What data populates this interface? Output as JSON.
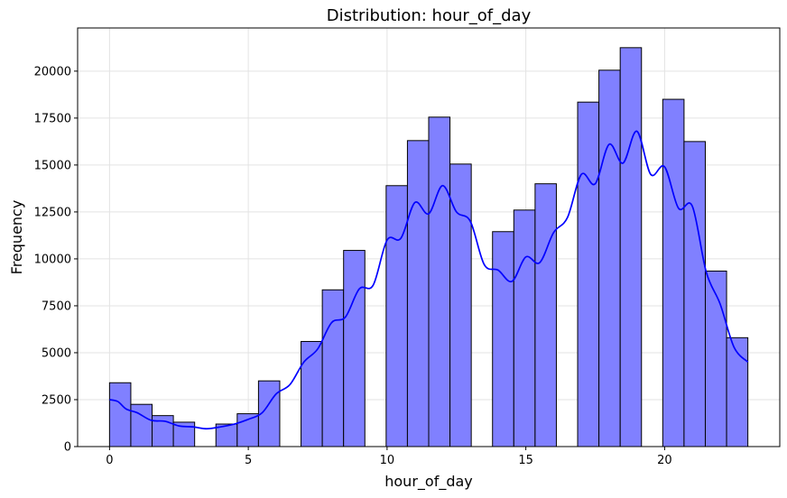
{
  "chart_data": {
    "type": "bar",
    "title": "Distribution: hour_of_day",
    "xlabel": "hour_of_day",
    "ylabel": "Frequency",
    "xlim": [
      -1.15,
      24.15
    ],
    "ylim": [
      0,
      22300
    ],
    "xticks": [
      0,
      5,
      10,
      15,
      20
    ],
    "yticks": [
      0,
      2500,
      5000,
      7500,
      10000,
      12500,
      15000,
      17500,
      20000
    ],
    "grid": true,
    "bin_width": 0.7667,
    "bins": [
      {
        "x0": 0.0,
        "x1": 0.7667,
        "count": 3400
      },
      {
        "x0": 0.7667,
        "x1": 1.5333,
        "count": 2250
      },
      {
        "x0": 1.5333,
        "x1": 2.3,
        "count": 1650
      },
      {
        "x0": 2.3,
        "x1": 3.0667,
        "count": 1300
      },
      {
        "x0": 3.0667,
        "x1": 3.8333,
        "count": 0
      },
      {
        "x0": 3.8333,
        "x1": 4.6,
        "count": 1200
      },
      {
        "x0": 4.6,
        "x1": 5.3667,
        "count": 1750
      },
      {
        "x0": 5.3667,
        "x1": 6.1333,
        "count": 3500
      },
      {
        "x0": 6.1333,
        "x1": 6.9,
        "count": 0
      },
      {
        "x0": 6.9,
        "x1": 7.6667,
        "count": 5600
      },
      {
        "x0": 7.6667,
        "x1": 8.4333,
        "count": 8350
      },
      {
        "x0": 8.4333,
        "x1": 9.2,
        "count": 10450
      },
      {
        "x0": 9.2,
        "x1": 9.9667,
        "count": 0
      },
      {
        "x0": 9.9667,
        "x1": 10.7333,
        "count": 13900
      },
      {
        "x0": 10.7333,
        "x1": 11.5,
        "count": 16300
      },
      {
        "x0": 11.5,
        "x1": 12.2667,
        "count": 17550
      },
      {
        "x0": 12.2667,
        "x1": 13.0333,
        "count": 15050
      },
      {
        "x0": 13.0333,
        "x1": 13.8,
        "count": 0
      },
      {
        "x0": 13.8,
        "x1": 14.5667,
        "count": 11450
      },
      {
        "x0": 14.5667,
        "x1": 15.3333,
        "count": 12600
      },
      {
        "x0": 15.3333,
        "x1": 16.1,
        "count": 14000
      },
      {
        "x0": 16.1,
        "x1": 16.8667,
        "count": 0
      },
      {
        "x0": 16.8667,
        "x1": 17.6333,
        "count": 18350
      },
      {
        "x0": 17.6333,
        "x1": 18.4,
        "count": 20050
      },
      {
        "x0": 18.4,
        "x1": 19.1667,
        "count": 21250
      },
      {
        "x0": 19.1667,
        "x1": 19.9333,
        "count": 0
      },
      {
        "x0": 19.9333,
        "x1": 20.7,
        "count": 18500
      },
      {
        "x0": 20.7,
        "x1": 21.4667,
        "count": 16250
      },
      {
        "x0": 21.4667,
        "x1": 22.2333,
        "count": 9350
      },
      {
        "x0": 22.2333,
        "x1": 23.0,
        "count": 5800
      }
    ],
    "kde": {
      "x": [
        0,
        0.3,
        0.6,
        1.0,
        1.5,
        2.0,
        2.5,
        3.0,
        3.5,
        4.0,
        4.5,
        5.0,
        5.5,
        6.0,
        6.5,
        7.0,
        7.5,
        8.0,
        8.5,
        9.0,
        9.5,
        10.0,
        10.5,
        11.0,
        11.5,
        12.0,
        12.5,
        13.0,
        13.5,
        14.0,
        14.5,
        15.0,
        15.5,
        16.0,
        16.5,
        17.0,
        17.5,
        18.0,
        18.5,
        19.0,
        19.5,
        20.0,
        20.5,
        21.0,
        21.5,
        22.0,
        22.5,
        23.0
      ],
      "y": [
        2500,
        2400,
        2000,
        1800,
        1400,
        1350,
        1100,
        1050,
        950,
        1050,
        1200,
        1450,
        1800,
        2800,
        3300,
        4500,
        5200,
        6600,
        6900,
        8400,
        8600,
        11000,
        11100,
        13000,
        12400,
        13900,
        12500,
        12000,
        9700,
        9400,
        8800,
        10100,
        9800,
        11400,
        12200,
        14500,
        14000,
        16100,
        15100,
        16800,
        14500,
        14900,
        12700,
        12800,
        9300,
        7600,
        5300,
        4500
      ]
    },
    "bar_color": "#8080ff",
    "bar_edge_color": "#000000",
    "kde_color": "#0000ff"
  }
}
